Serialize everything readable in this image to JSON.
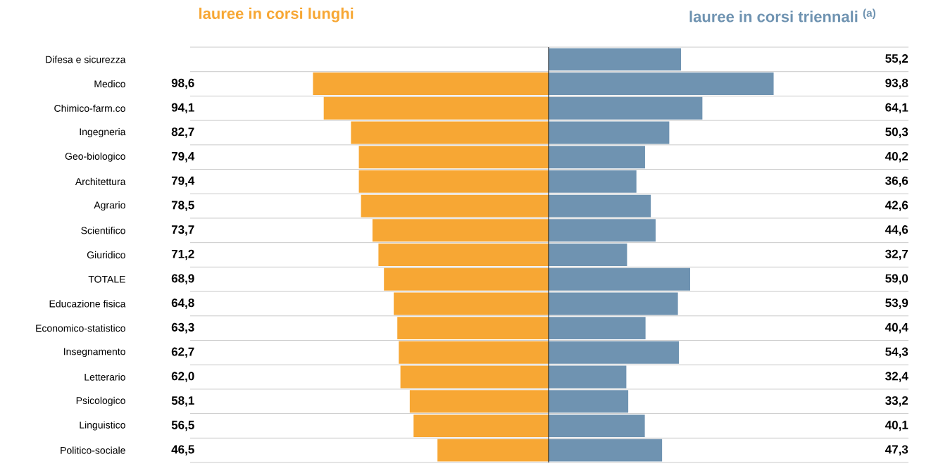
{
  "chart_data": [
    {
      "type": "bar",
      "orientation": "horizontal",
      "title": "lauree in corsi lunghi",
      "color": "#f7a734",
      "categories": [
        "Difesa e sicurezza",
        "Medico",
        "Chimico-farm.co",
        "Ingegneria",
        "Geo-biologico",
        "Architettura",
        "Agrario",
        "Scientifico",
        "Giuridico",
        "TOTALE",
        "Educazione fisica",
        "Economico-statistico",
        "Insegnamento",
        "Letterario",
        "Psicologico",
        "Linguistico",
        "Politico-sociale"
      ],
      "values": [
        null,
        98.6,
        94.1,
        82.7,
        79.4,
        79.4,
        78.5,
        73.7,
        71.2,
        68.9,
        64.8,
        63.3,
        62.7,
        62.0,
        58.1,
        56.5,
        46.5
      ],
      "value_labels": [
        null,
        "98,6",
        "94,1",
        "82,7",
        "79,4",
        "79,4",
        "78,5",
        "73,7",
        "71,2",
        "68,9",
        "64,8",
        "63,3",
        "62,7",
        "62,0",
        "58,1",
        "56,5",
        "46,5"
      ],
      "xlim": [
        150,
        0
      ],
      "grid": "y",
      "tick_labels": "y"
    },
    {
      "type": "bar",
      "orientation": "horizontal",
      "title": "lauree in corsi triennali $^{(a)}$",
      "color": "#6f93b1",
      "categories": [
        null,
        null,
        null,
        null,
        null,
        null,
        null,
        null,
        null,
        null,
        null,
        null,
        null,
        null,
        null,
        null,
        null
      ],
      "values": [
        55.2,
        93.8,
        64.1,
        50.3,
        40.2,
        36.6,
        42.6,
        44.6,
        32.7,
        59.0,
        53.9,
        40.4,
        54.3,
        32.4,
        33.2,
        40.1,
        47.3
      ],
      "value_labels": [
        "55,2",
        "93,8",
        "64,1",
        "50,3",
        "40,2",
        "36,6",
        "42,6",
        "44,6",
        "32,7",
        "59,0",
        "53,9",
        "40,4",
        "54,3",
        "32,4",
        "33,2",
        "40,1",
        "47,3"
      ],
      "xlim": [
        0,
        150
      ],
      "grid": "y",
      "tick_labels": false
    }
  ]
}
